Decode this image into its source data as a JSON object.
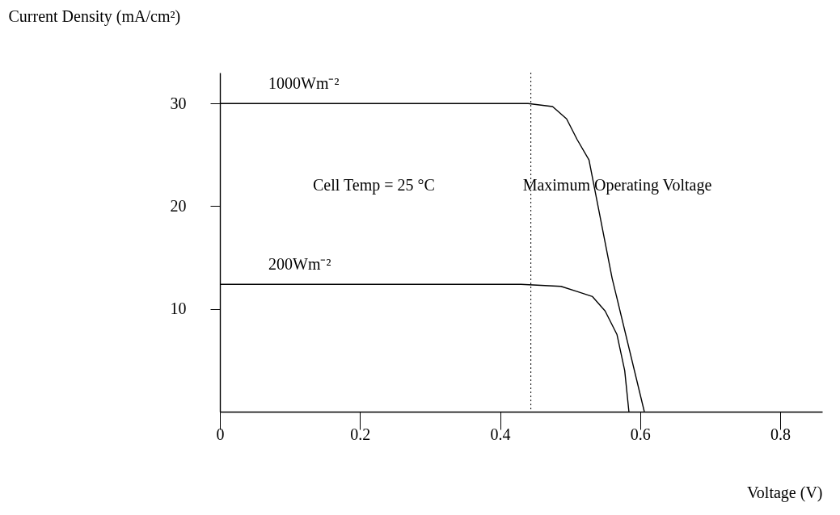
{
  "chart_data": {
    "type": "line",
    "xlabel": "Voltage (V)",
    "ylabel": "Current Density (mA/cm²)",
    "xlim": [
      0,
      0.86
    ],
    "ylim": [
      0,
      33
    ],
    "xticks": [
      0,
      0.2,
      0.4,
      0.6,
      0.8
    ],
    "yticks": [
      10,
      20,
      30
    ],
    "series": [
      {
        "name": "1000Wm⁻²",
        "color": "#000000",
        "x": [
          0,
          0.3,
          0.44,
          0.475,
          0.495,
          0.51,
          0.527,
          0.56,
          0.606
        ],
        "values": [
          30,
          30,
          30,
          29.7,
          28.5,
          26.5,
          24.5,
          13,
          0
        ]
      },
      {
        "name": "200Wm⁻²",
        "color": "#000000",
        "x": [
          0,
          0.3,
          0.43,
          0.487,
          0.51,
          0.532,
          0.55,
          0.567,
          0.578,
          0.584
        ],
        "values": [
          12.4,
          12.4,
          12.4,
          12.2,
          11.7,
          11.2,
          9.8,
          7.5,
          4,
          0
        ]
      }
    ],
    "ref_lines": [
      {
        "axis": "x",
        "value": 0.444,
        "label": "Maximum Operating Voltage",
        "line_style": "dotted",
        "color": "#000000"
      }
    ],
    "annotations": [
      "Cell Temp = 25 °C"
    ],
    "grid": false,
    "legend": false,
    "marker": "none",
    "line_style": "solid"
  }
}
